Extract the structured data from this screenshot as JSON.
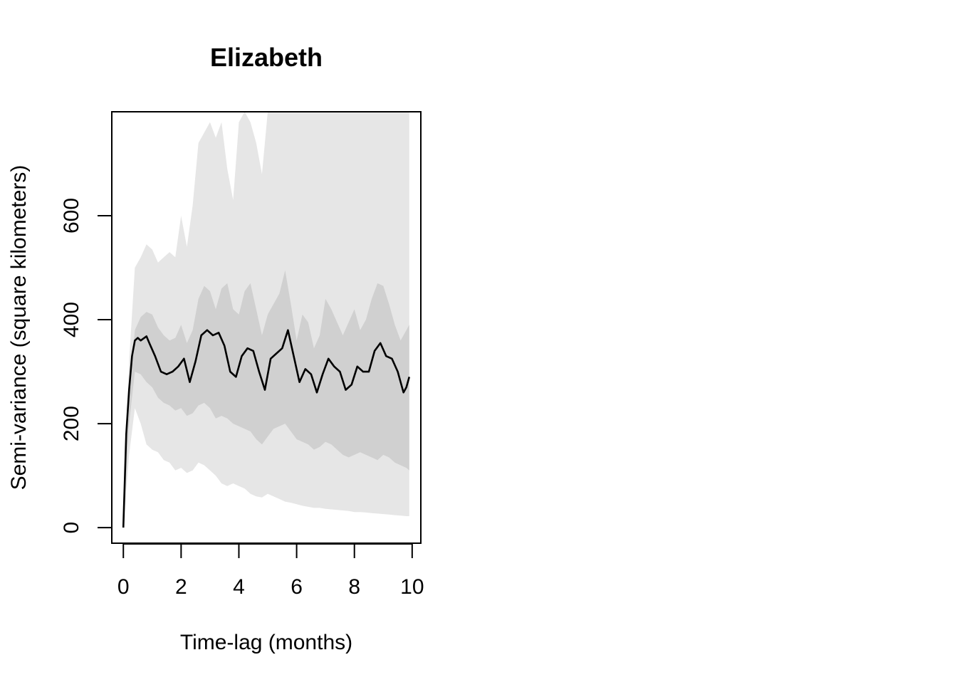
{
  "chart_data": {
    "type": "line",
    "title": "Elizabeth",
    "xlabel": "Time-lag (months)",
    "ylabel": "Semi-variance (square kilometers)",
    "xlim": [
      -0.4,
      10.3
    ],
    "ylim": [
      -30,
      800
    ],
    "x_ticks": [
      "0",
      "2",
      "4",
      "6",
      "8",
      "10"
    ],
    "y_ticks": [
      "0",
      "200",
      "400",
      "600"
    ],
    "grid": false,
    "legend": "none",
    "colors": {
      "line": "#000000",
      "inner_band": "#d0d0d0",
      "outer_band": "#e6e6e6"
    },
    "series": [
      {
        "role": "estimate",
        "x": [
          0,
          0.1,
          0.2,
          0.3,
          0.4,
          0.5,
          0.6,
          0.8,
          0.9,
          1.1,
          1.3,
          1.5,
          1.7,
          1.9,
          2.1,
          2.3,
          2.5,
          2.7,
          2.9,
          3.1,
          3.3,
          3.5,
          3.7,
          3.9,
          4.1,
          4.3,
          4.5,
          4.7,
          4.9,
          5.1,
          5.3,
          5.5,
          5.7,
          5.9,
          6.1,
          6.3,
          6.5,
          6.7,
          6.9,
          7.1,
          7.3,
          7.5,
          7.7,
          7.9,
          8.1,
          8.3,
          8.5,
          8.7,
          8.9,
          9.1,
          9.3,
          9.5,
          9.6,
          9.7,
          9.8,
          9.9
        ],
        "y": [
          0,
          180,
          265,
          330,
          360,
          365,
          360,
          368,
          355,
          330,
          300,
          295,
          300,
          310,
          325,
          280,
          320,
          370,
          380,
          370,
          375,
          350,
          300,
          290,
          330,
          345,
          340,
          300,
          265,
          325,
          335,
          345,
          380,
          330,
          280,
          305,
          295,
          260,
          295,
          325,
          310,
          300,
          265,
          275,
          310,
          300,
          300,
          340,
          355,
          330,
          325,
          300,
          280,
          260,
          270,
          290
        ]
      }
    ],
    "bands": [
      {
        "role": "outer",
        "x": [
          0,
          0.2,
          0.4,
          0.6,
          0.8,
          1.0,
          1.2,
          1.4,
          1.6,
          1.8,
          2.0,
          2.2,
          2.4,
          2.6,
          2.8,
          3.0,
          3.2,
          3.4,
          3.6,
          3.8,
          4.0,
          4.2,
          4.4,
          4.6,
          4.8,
          5.0,
          5.2,
          5.4,
          5.6,
          5.8,
          6.0,
          6.2,
          6.4,
          6.6,
          6.8,
          7.0,
          7.2,
          7.4,
          7.6,
          7.8,
          8.0,
          8.2,
          8.4,
          8.6,
          8.8,
          9.0,
          9.2,
          9.4,
          9.6,
          9.8,
          9.9
        ],
        "upper": [
          0,
          320,
          500,
          520,
          545,
          535,
          510,
          520,
          530,
          520,
          600,
          540,
          620,
          740,
          760,
          780,
          750,
          780,
          690,
          630,
          780,
          800,
          780,
          740,
          680,
          800,
          800,
          800,
          800,
          800,
          800,
          800,
          800,
          800,
          800,
          800,
          800,
          800,
          800,
          800,
          800,
          800,
          800,
          800,
          800,
          800,
          800,
          800,
          800,
          800,
          800
        ],
        "lower": [
          0,
          140,
          230,
          200,
          160,
          150,
          145,
          130,
          125,
          110,
          115,
          105,
          110,
          125,
          120,
          110,
          100,
          85,
          80,
          85,
          80,
          75,
          65,
          60,
          58,
          65,
          60,
          55,
          50,
          48,
          45,
          42,
          40,
          38,
          38,
          36,
          35,
          34,
          33,
          32,
          30,
          30,
          29,
          28,
          27,
          26,
          25,
          24,
          23,
          22,
          22
        ]
      },
      {
        "role": "inner",
        "x": [
          0,
          0.2,
          0.4,
          0.6,
          0.8,
          1.0,
          1.2,
          1.4,
          1.6,
          1.8,
          2.0,
          2.2,
          2.4,
          2.6,
          2.8,
          3.0,
          3.2,
          3.4,
          3.6,
          3.8,
          4.0,
          4.2,
          4.4,
          4.6,
          4.8,
          5.0,
          5.2,
          5.4,
          5.6,
          5.8,
          6.0,
          6.2,
          6.4,
          6.6,
          6.8,
          7.0,
          7.2,
          7.4,
          7.6,
          7.8,
          8.0,
          8.2,
          8.4,
          8.6,
          8.8,
          9.0,
          9.2,
          9.4,
          9.6,
          9.8,
          9.9
        ],
        "upper": [
          0,
          250,
          380,
          405,
          415,
          410,
          385,
          370,
          360,
          365,
          390,
          355,
          380,
          440,
          465,
          455,
          420,
          460,
          470,
          420,
          410,
          455,
          470,
          420,
          370,
          410,
          430,
          450,
          495,
          430,
          360,
          410,
          395,
          345,
          370,
          440,
          420,
          395,
          370,
          395,
          420,
          380,
          400,
          440,
          470,
          465,
          430,
          390,
          360,
          380,
          390
        ],
        "lower": [
          0,
          200,
          300,
          295,
          280,
          270,
          250,
          240,
          235,
          225,
          230,
          215,
          220,
          235,
          240,
          230,
          210,
          215,
          210,
          200,
          195,
          190,
          185,
          170,
          160,
          175,
          190,
          195,
          200,
          185,
          170,
          165,
          160,
          150,
          155,
          165,
          160,
          150,
          140,
          135,
          140,
          145,
          140,
          135,
          130,
          140,
          135,
          125,
          120,
          115,
          110
        ]
      }
    ]
  }
}
